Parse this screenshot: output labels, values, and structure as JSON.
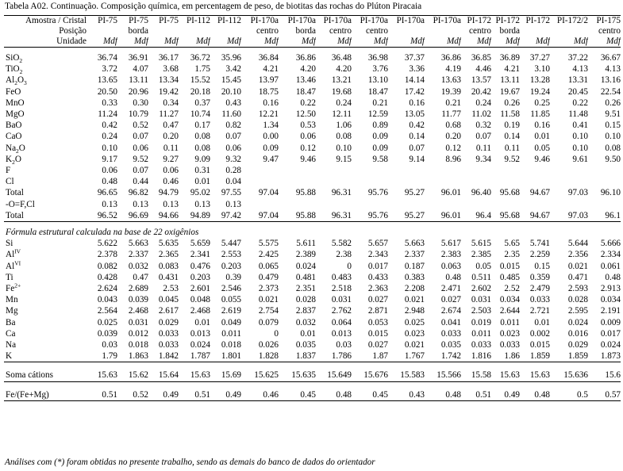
{
  "caption": "Tabela A02. Continuação. Composição química, em percentagem de peso, de biotitas das rochas do Plúton Piracaia",
  "header": {
    "row1_label": "Amostra / Cristal",
    "row2_label": "Posição",
    "row3_label": "Unidade",
    "samples": [
      "PI-75",
      "PI-75",
      "PI-75",
      "PI-112",
      "PI-112",
      "PI-170a",
      "PI-170a",
      "PI-170a",
      "PI-170a",
      "PI-170a",
      "PI-170a",
      "PI-172",
      "PI-172",
      "PI-172",
      "PI-172/2",
      "PI-175"
    ],
    "positions": [
      "",
      "borda",
      "",
      "",
      "",
      "centro",
      "borda",
      "centro",
      "centro",
      "",
      "",
      "centro",
      "borda",
      "",
      "",
      "centro"
    ],
    "unit": "Mdf"
  },
  "oxides": [
    {
      "label": "SiO",
      "sub": "2",
      "values": [
        "36.74",
        "36.91",
        "36.17",
        "36.72",
        "35.96",
        "36.84",
        "36.86",
        "36.48",
        "36.98",
        "37.37",
        "36.86",
        "36.85",
        "36.89",
        "37.27",
        "37.22",
        "36.67"
      ]
    },
    {
      "label": "TiO",
      "sub": "2",
      "values": [
        "3.72",
        "4.07",
        "3.68",
        "1.75",
        "3.42",
        "4.21",
        "4.20",
        "4.20",
        "3.76",
        "3.36",
        "4.19",
        "4.46",
        "4.21",
        "3.10",
        "4.13",
        "4.13"
      ]
    },
    {
      "label": "Al",
      "sub": "2",
      "label2": "O",
      "sub2": "3",
      "values": [
        "13.65",
        "13.11",
        "13.34",
        "15.52",
        "15.45",
        "13.97",
        "13.46",
        "13.21",
        "13.10",
        "14.14",
        "13.63",
        "13.57",
        "13.11",
        "13.28",
        "13.31",
        "13.16"
      ]
    },
    {
      "label": "FeO",
      "values": [
        "20.50",
        "20.96",
        "19.42",
        "20.18",
        "20.10",
        "18.75",
        "18.47",
        "19.68",
        "18.47",
        "17.42",
        "19.39",
        "20.42",
        "19.67",
        "19.24",
        "20.45",
        "22.54"
      ]
    },
    {
      "label": "MnO",
      "values": [
        "0.33",
        "0.30",
        "0.34",
        "0.37",
        "0.43",
        "0.16",
        "0.22",
        "0.24",
        "0.21",
        "0.16",
        "0.21",
        "0.24",
        "0.26",
        "0.25",
        "0.22",
        "0.26"
      ]
    },
    {
      "label": "MgO",
      "values": [
        "11.24",
        "10.79",
        "11.27",
        "10.74",
        "11.60",
        "12.21",
        "12.50",
        "12.11",
        "12.59",
        "13.05",
        "11.77",
        "11.02",
        "11.58",
        "11.85",
        "11.48",
        "9.51"
      ]
    },
    {
      "label": "BaO",
      "values": [
        "0.42",
        "0.52",
        "0.47",
        "0.17",
        "0.82",
        "1.34",
        "0.53",
        "1.06",
        "0.89",
        "0.42",
        "0.68",
        "0.32",
        "0.19",
        "0.16",
        "0.41",
        "0.15"
      ]
    },
    {
      "label": "CaO",
      "values": [
        "0.24",
        "0.07",
        "0.20",
        "0.08",
        "0.07",
        "0.00",
        "0.06",
        "0.08",
        "0.09",
        "0.14",
        "0.20",
        "0.07",
        "0.14",
        "0.01",
        "0.10",
        "0.10"
      ]
    },
    {
      "label": "Na",
      "sub": "2",
      "label2": "O",
      "values": [
        "0.10",
        "0.06",
        "0.11",
        "0.08",
        "0.06",
        "0.09",
        "0.12",
        "0.10",
        "0.09",
        "0.07",
        "0.12",
        "0.11",
        "0.11",
        "0.05",
        "0.10",
        "0.08"
      ]
    },
    {
      "label": "K",
      "sub": "2",
      "label2": "O",
      "values": [
        "9.17",
        "9.52",
        "9.27",
        "9.09",
        "9.32",
        "9.47",
        "9.46",
        "9.15",
        "9.58",
        "9.14",
        "8.96",
        "9.34",
        "9.52",
        "9.46",
        "9.61",
        "9.50"
      ]
    },
    {
      "label": "F",
      "values": [
        "0.06",
        "0.07",
        "0.06",
        "0.31",
        "0.28",
        "",
        "",
        "",
        "",
        "",
        "",
        "",
        "",
        "",
        "",
        ""
      ]
    },
    {
      "label": "Cl",
      "values": [
        "0.48",
        "0.44",
        "0.46",
        "0.01",
        "0.04",
        "",
        "",
        "",
        "",
        "",
        "",
        "",
        "",
        "",
        "",
        ""
      ]
    }
  ],
  "totals": [
    {
      "label": "Total",
      "values": [
        "96.65",
        "96.82",
        "94.79",
        "95.02",
        "97.55",
        "97.04",
        "95.88",
        "96.31",
        "95.76",
        "95.27",
        "96.01",
        "96.40",
        "95.68",
        "94.67",
        "97.03",
        "96.10"
      ]
    },
    {
      "label": " -O=F,Cl",
      "values": [
        "0.13",
        "0.13",
        "0.13",
        "0.13",
        "0.13",
        "",
        "",
        "",
        "",
        "",
        "",
        "",
        "",
        "",
        "",
        ""
      ]
    },
    {
      "label": "Total",
      "values": [
        "96.52",
        "96.69",
        "94.66",
        "94.89",
        "97.42",
        "97.04",
        "95.88",
        "96.31",
        "95.76",
        "95.27",
        "96.01",
        "96.4",
        "95.68",
        "94.67",
        "97.03",
        "96.1"
      ]
    }
  ],
  "formula_title": "Fórmula estrutural calculada na base de 22 oxigênios",
  "formula": [
    {
      "label": "Si",
      "values": [
        "5.622",
        "5.663",
        "5.635",
        "5.659",
        "5.447",
        "5.575",
        "5.611",
        "5.582",
        "5.657",
        "5.663",
        "5.617",
        "5.615",
        "5.65",
        "5.741",
        "5.644",
        "5.666"
      ]
    },
    {
      "label": "Al",
      "sup": "IV",
      "values": [
        "2.378",
        "2.337",
        "2.365",
        "2.341",
        "2.553",
        "2.425",
        "2.389",
        "2.38",
        "2.343",
        "2.337",
        "2.383",
        "2.385",
        "2.35",
        "2.259",
        "2.356",
        "2.334"
      ]
    },
    {
      "label": "Al",
      "sup": "VI",
      "values": [
        "0.082",
        "0.032",
        "0.083",
        "0.476",
        "0.203",
        "0.065",
        "0.024",
        "0",
        "0.017",
        "0.187",
        "0.063",
        "0.05",
        "0.015",
        "0.15",
        "0.021",
        "0.061"
      ]
    },
    {
      "label": "Ti",
      "values": [
        "0.428",
        "0.47",
        "0.431",
        "0.203",
        "0.39",
        "0.479",
        "0.481",
        "0.483",
        "0.433",
        "0.383",
        "0.48",
        "0.511",
        "0.485",
        "0.359",
        "0.471",
        "0.48"
      ]
    },
    {
      "label": "Fe",
      "sup": "2+",
      "values": [
        "2.624",
        "2.689",
        "2.53",
        "2.601",
        "2.546",
        "2.373",
        "2.351",
        "2.518",
        "2.363",
        "2.208",
        "2.471",
        "2.602",
        "2.52",
        "2.479",
        "2.593",
        "2.913"
      ]
    },
    {
      "label": "Mn",
      "values": [
        "0.043",
        "0.039",
        "0.045",
        "0.048",
        "0.055",
        "0.021",
        "0.028",
        "0.031",
        "0.027",
        "0.021",
        "0.027",
        "0.031",
        "0.034",
        "0.033",
        "0.028",
        "0.034"
      ]
    },
    {
      "label": "Mg",
      "values": [
        "2.564",
        "2.468",
        "2.617",
        "2.468",
        "2.619",
        "2.754",
        "2.837",
        "2.762",
        "2.871",
        "2.948",
        "2.674",
        "2.503",
        "2.644",
        "2.721",
        "2.595",
        "2.191"
      ]
    },
    {
      "label": "Ba",
      "values": [
        "0.025",
        "0.031",
        "0.029",
        "0.01",
        "0.049",
        "0.079",
        "0.032",
        "0.064",
        "0.053",
        "0.025",
        "0.041",
        "0.019",
        "0.011",
        "0.01",
        "0.024",
        "0.009"
      ]
    },
    {
      "label": "Ca",
      "values": [
        "0.039",
        "0.012",
        "0.033",
        "0.013",
        "0.011",
        "0",
        "0.01",
        "0.013",
        "0.015",
        "0.023",
        "0.033",
        "0.011",
        "0.023",
        "0.002",
        "0.016",
        "0.017"
      ]
    },
    {
      "label": "Na",
      "values": [
        "0.03",
        "0.018",
        "0.033",
        "0.024",
        "0.018",
        "0.026",
        "0.035",
        "0.03",
        "0.027",
        "0.021",
        "0.035",
        "0.033",
        "0.033",
        "0.015",
        "0.029",
        "0.024"
      ]
    },
    {
      "label": "K",
      "values": [
        "1.79",
        "1.863",
        "1.842",
        "1.787",
        "1.801",
        "1.828",
        "1.837",
        "1.786",
        "1.87",
        "1.767",
        "1.742",
        "1.816",
        "1.86",
        "1.859",
        "1.859",
        "1.873"
      ]
    }
  ],
  "soma": {
    "label": "Soma cátions",
    "values": [
      "15.63",
      "15.62",
      "15.64",
      "15.63",
      "15.69",
      "15.625",
      "15.635",
      "15.649",
      "15.676",
      "15.583",
      "15.566",
      "15.58",
      "15.63",
      "15.63",
      "15.636",
      "15.6"
    ]
  },
  "ratio": {
    "label": "Fe/(Fe+Mg)",
    "values": [
      "0.51",
      "0.52",
      "0.49",
      "0.51",
      "0.49",
      "0.46",
      "0.45",
      "0.48",
      "0.45",
      "0.43",
      "0.48",
      "0.51",
      "0.49",
      "0.48",
      "0.5",
      "0.57"
    ]
  },
  "footnote": "Análises com (*) foram obtidas no presente trabalho, sendo as demais do banco de dados do orientador"
}
